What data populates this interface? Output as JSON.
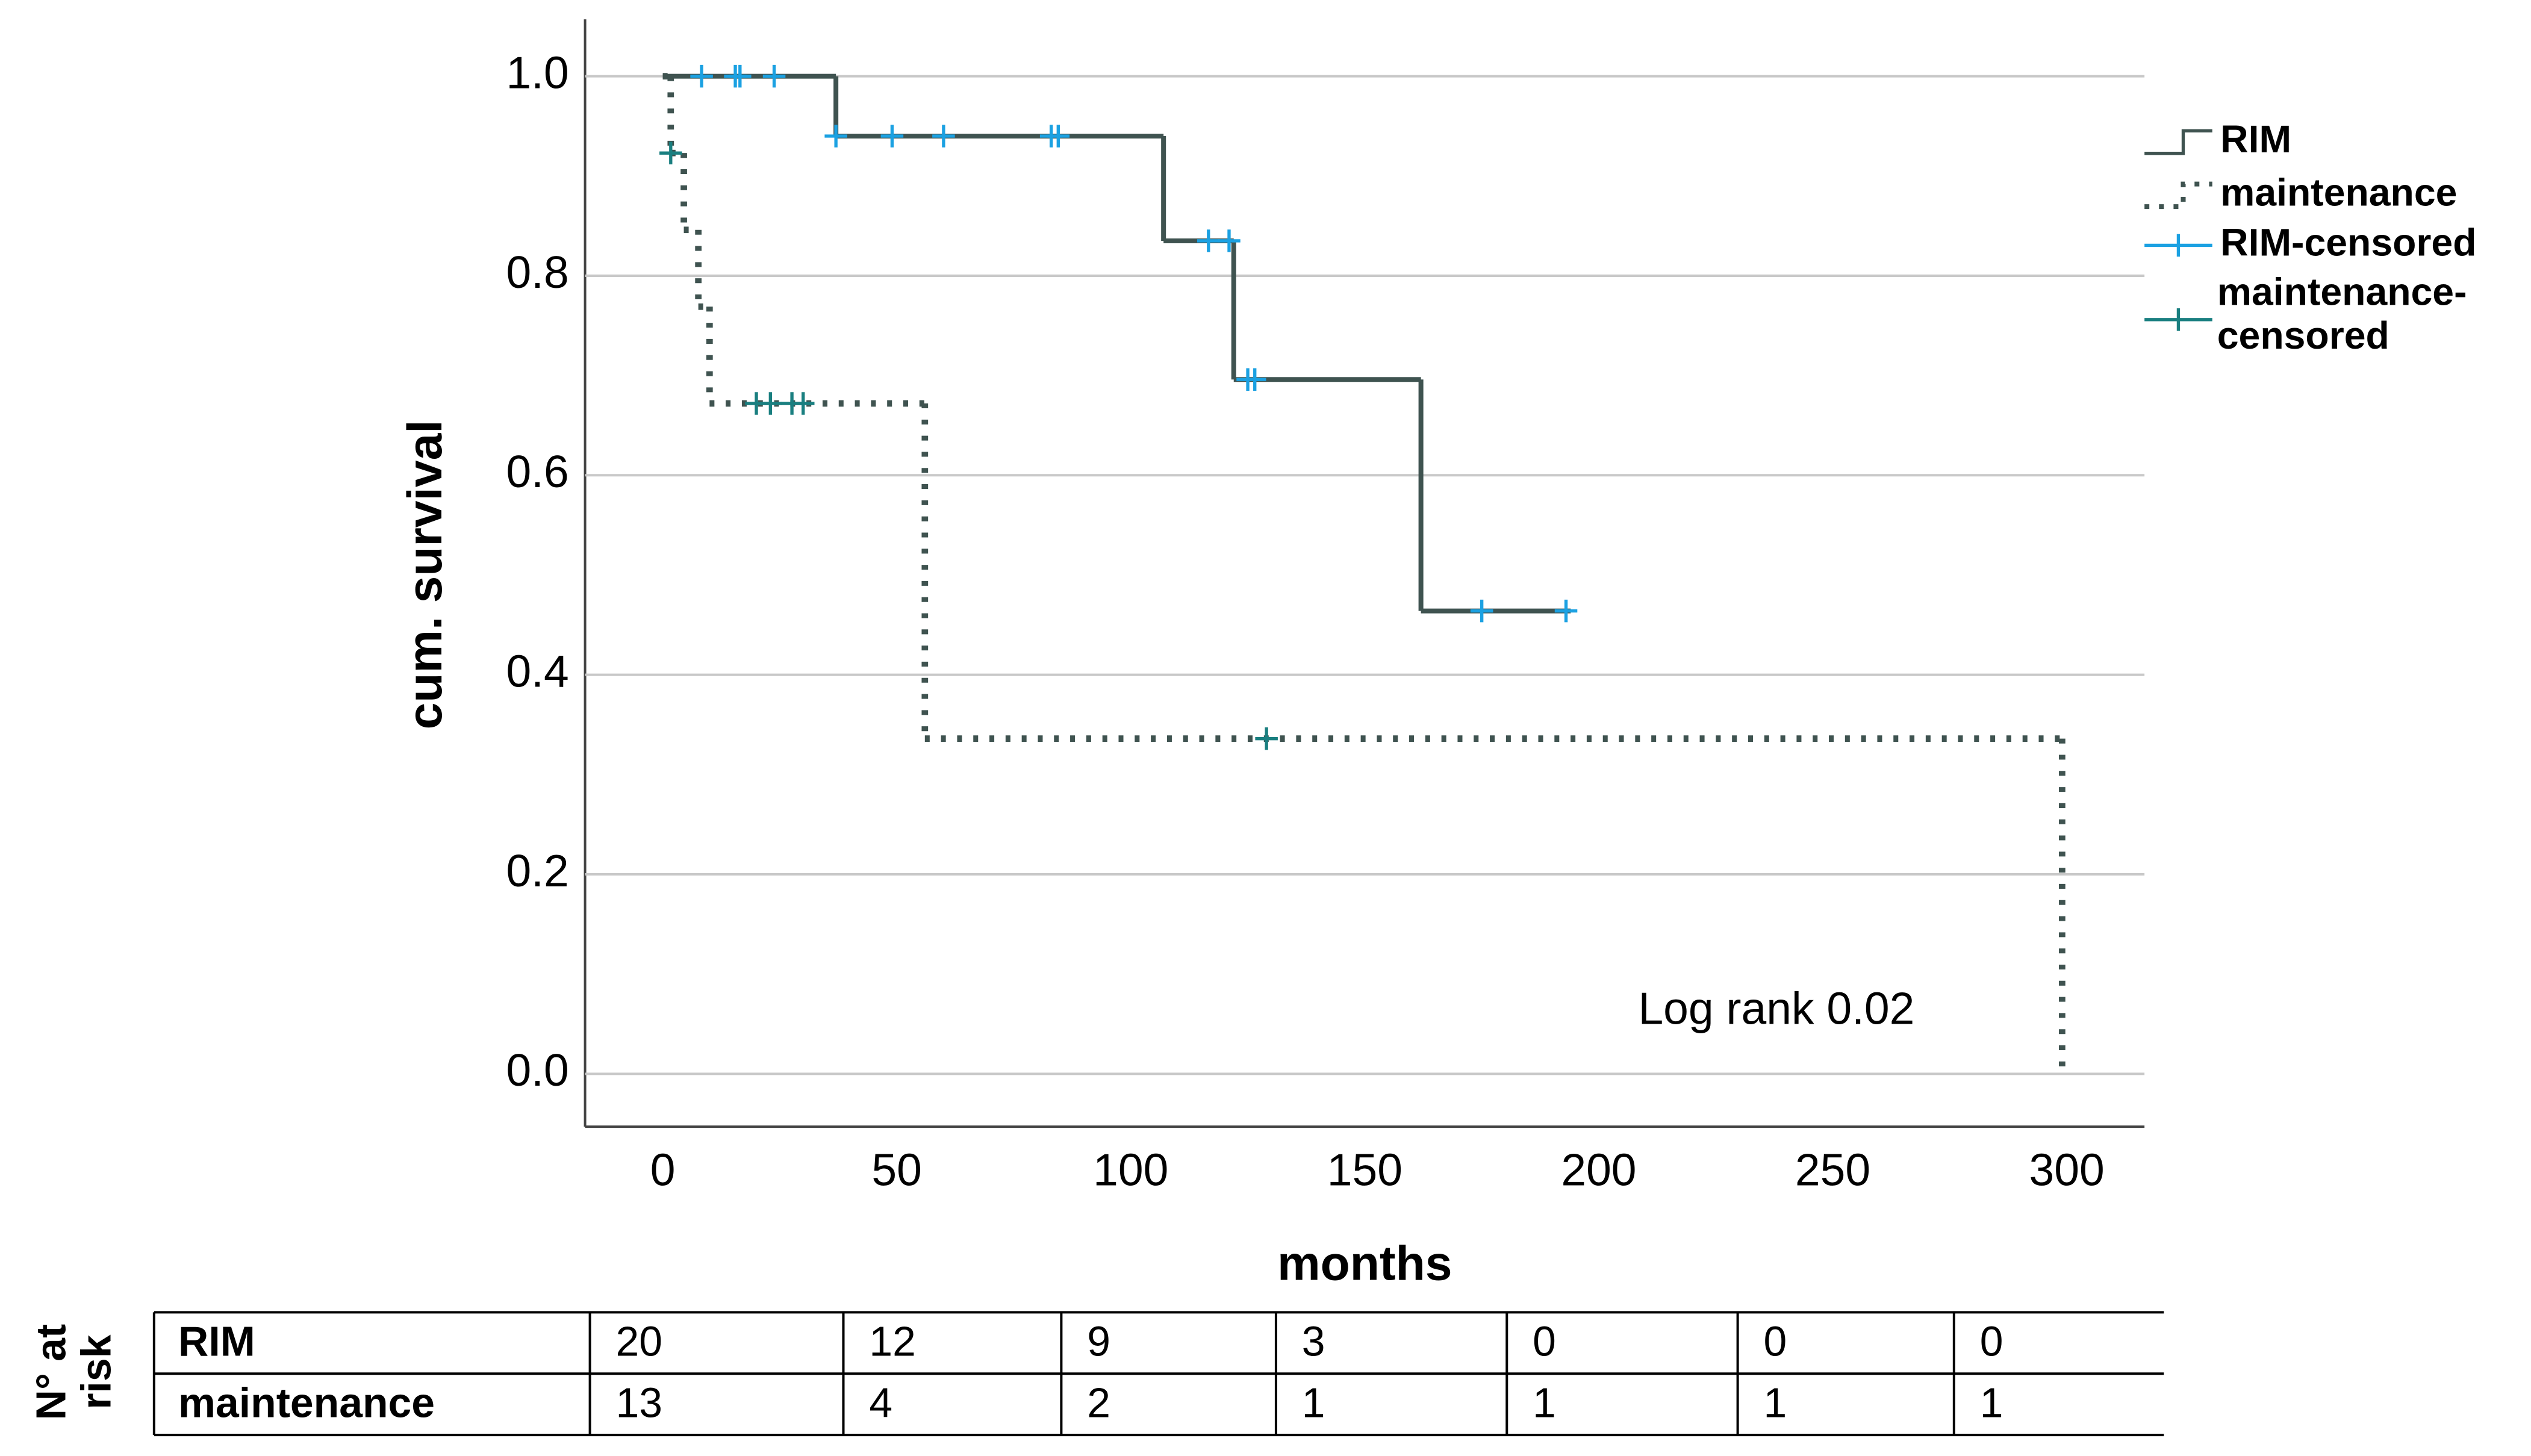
{
  "chart_data": {
    "type": "km",
    "x_label": "months",
    "y_label": "cum. survival",
    "annotation": "Log rank 0.02",
    "xlim": [
      -16.6,
      316.6
    ],
    "xticks": [
      0,
      50,
      100,
      150,
      200,
      250,
      300
    ],
    "ylim": [
      -0.053,
      1.057
    ],
    "yticks": [
      {
        "value": 0,
        "label": "0.0"
      },
      0.2,
      0.4,
      0.6,
      0.8,
      {
        "value": 1,
        "label": "1.0"
      }
    ],
    "grid": true,
    "legend": "right",
    "series": [
      {
        "name": "RIM",
        "style": "step",
        "dash": "solid",
        "color": "#3f5350",
        "x": [
          0,
          37,
          107,
          122,
          162,
          194
        ],
        "values": [
          1,
          0.94,
          0.835,
          0.696,
          0.464,
          0.464
        ]
      },
      {
        "name": "maintenance",
        "style": "step",
        "dash": "dotted",
        "color": "#3f5350",
        "x": [
          0,
          1.7,
          4.5,
          7.6,
          10,
          56,
          299
        ],
        "values": [
          1,
          0.923,
          0.846,
          0.769,
          0.672,
          0.336,
          0
        ]
      },
      {
        "name": "RIM-censored",
        "style": "marker",
        "color": "#1ba1e2",
        "x": [
          8.3,
          15.5,
          16.5,
          23.8,
          37,
          49,
          60,
          83,
          84.5,
          116.6,
          121,
          125,
          126.5,
          175,
          193
        ],
        "values": [
          1,
          1,
          1,
          1,
          0.94,
          0.94,
          0.94,
          0.94,
          0.94,
          0.835,
          0.835,
          0.696,
          0.696,
          0.464,
          0.464
        ]
      },
      {
        "name": "maintenance-censored",
        "style": "marker",
        "color": "#1a7f80",
        "x": [
          1.7,
          20,
          23,
          27.6,
          30,
          129
        ],
        "values": [
          0.923,
          0.672,
          0.672,
          0.672,
          0.672,
          0.336
        ]
      }
    ]
  },
  "risk_table": {
    "title": "N° at risk",
    "rows": [
      {
        "name": "RIM",
        "values": [
          20,
          12,
          9,
          3,
          0,
          0,
          0
        ]
      },
      {
        "name": "maintenance",
        "values": [
          13,
          4,
          2,
          1,
          1,
          1,
          1
        ]
      }
    ]
  }
}
